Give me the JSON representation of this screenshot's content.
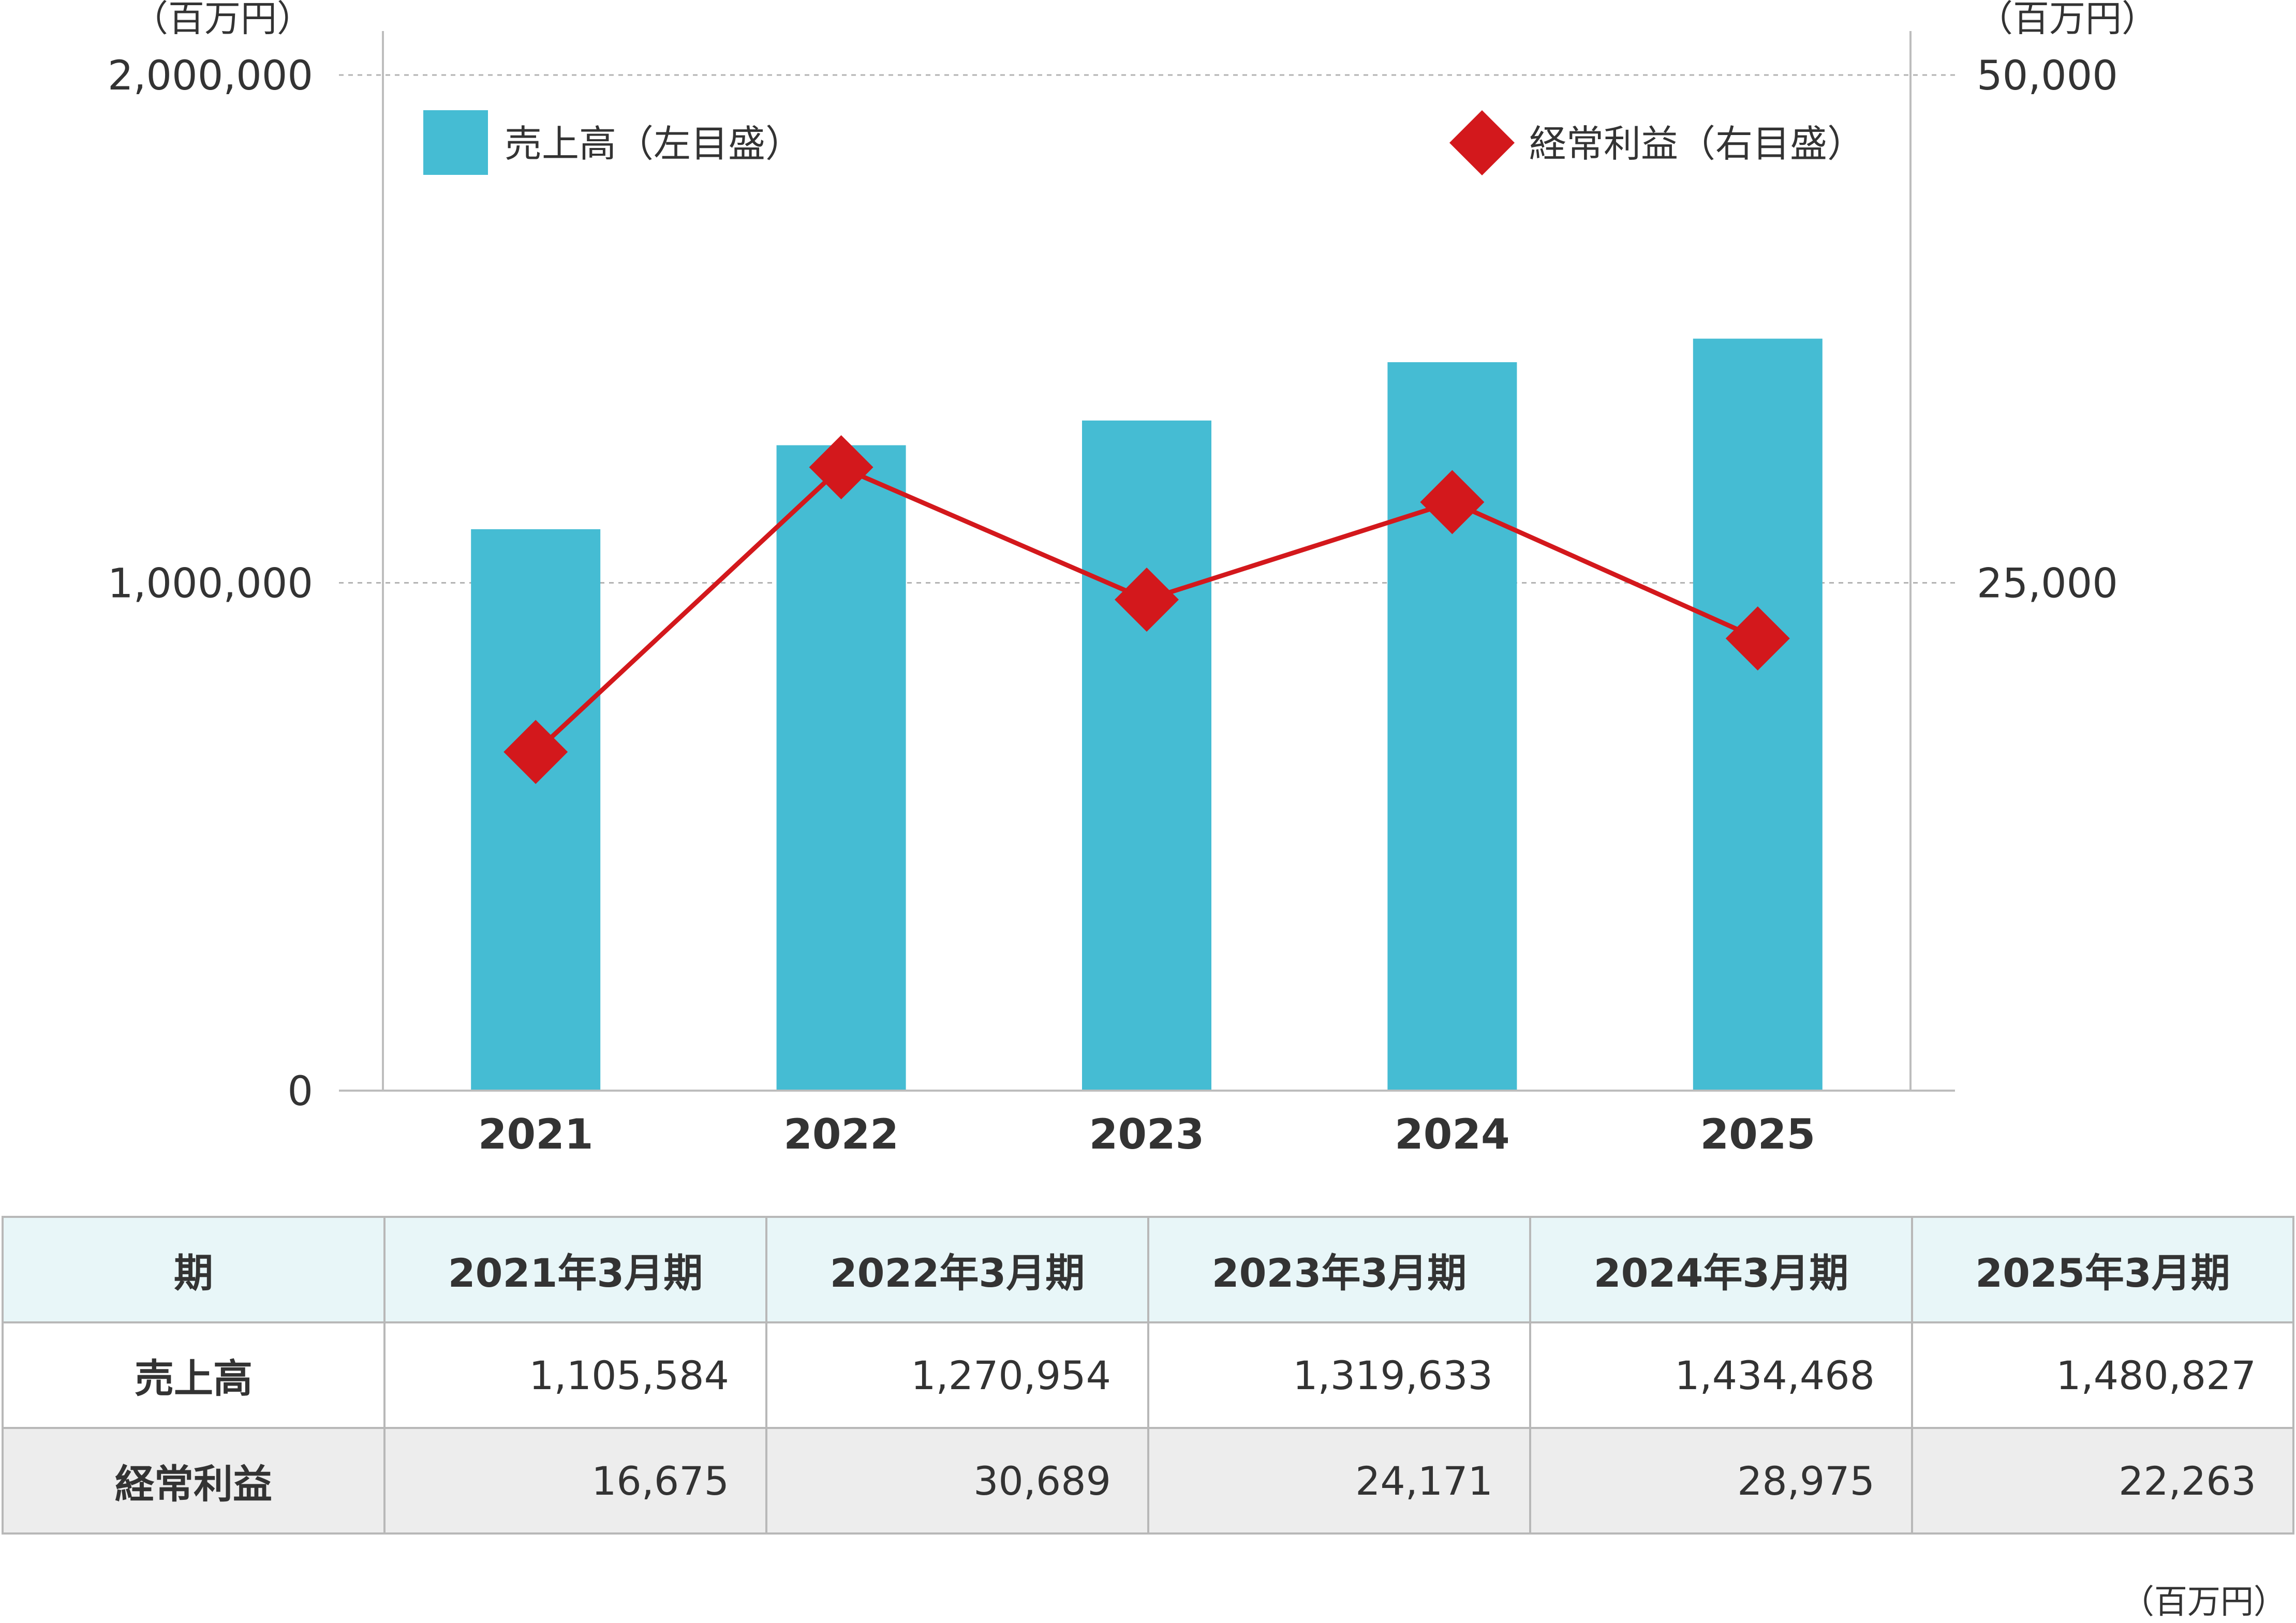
{
  "chart_data": {
    "type": "bar+line",
    "categories": [
      "2021",
      "2022",
      "2023",
      "2024",
      "2025"
    ],
    "series": [
      {
        "name": "売上高（左目盛）",
        "type": "bar",
        "axis": "left",
        "values": [
          1105584,
          1270954,
          1319633,
          1434468,
          1480827
        ],
        "color": "#45BCD3"
      },
      {
        "name": "経常利益（右目盛）",
        "type": "line",
        "axis": "right",
        "marker": "diamond",
        "values": [
          16675,
          30689,
          24171,
          28975,
          22263
        ],
        "color": "#D3181C"
      }
    ],
    "y_left": {
      "unit": "（百万円）",
      "ylim": [
        0,
        2000000
      ],
      "ticks": [
        0,
        1000000,
        2000000
      ],
      "tick_labels": [
        "0",
        "1,000,000",
        "2,000,000"
      ]
    },
    "y_right": {
      "unit": "（百万円）",
      "ylim": [
        0,
        50000
      ],
      "ticks": [
        25000,
        50000
      ],
      "tick_labels": [
        "25,000",
        "50,000"
      ]
    },
    "grid": "dashed horizontal",
    "legend": [
      "top-left",
      "top-right"
    ]
  },
  "table": {
    "header": [
      "期",
      "2021年3月期",
      "2022年3月期",
      "2023年3月期",
      "2024年3月期",
      "2025年3月期"
    ],
    "rows": [
      {
        "label": "売上高",
        "cells": [
          "1,105,584",
          "1,270,954",
          "1,319,633",
          "1,434,468",
          "1,480,827"
        ]
      },
      {
        "label": "経常利益",
        "cells": [
          "16,675",
          "30,689",
          "24,171",
          "28,975",
          "22,263"
        ]
      }
    ],
    "unit_note": "（百万円）"
  },
  "colors": {
    "bar": "#45BCD3",
    "line": "#D3181C",
    "header_bg": "#E8F6F8",
    "alt_row_bg": "#EDEDED"
  }
}
